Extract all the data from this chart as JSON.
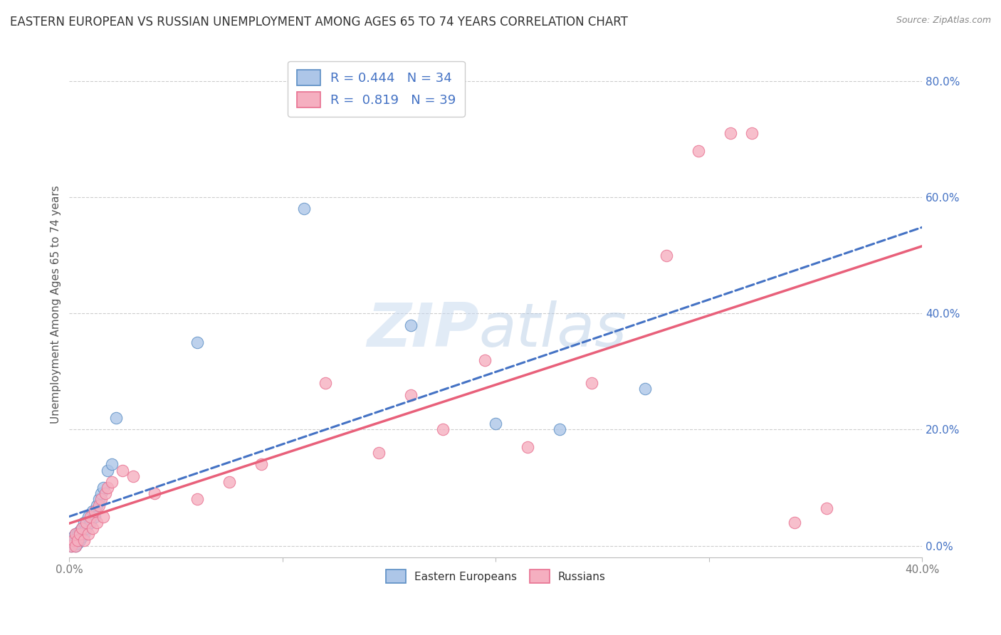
{
  "title": "EASTERN EUROPEAN VS RUSSIAN UNEMPLOYMENT AMONG AGES 65 TO 74 YEARS CORRELATION CHART",
  "source": "Source: ZipAtlas.com",
  "ylabel": "Unemployment Among Ages 65 to 74 years",
  "xlim": [
    0.0,
    0.4
  ],
  "ylim": [
    -0.02,
    0.85
  ],
  "ytick_vals": [
    0.0,
    0.2,
    0.4,
    0.6,
    0.8
  ],
  "xtick_vals": [
    0.0,
    0.1,
    0.2,
    0.3,
    0.4
  ],
  "ee_R": 0.444,
  "ee_N": 34,
  "ru_R": 0.819,
  "ru_N": 39,
  "ee_fill_color": "#adc6e8",
  "ru_fill_color": "#f5afc0",
  "ee_edge_color": "#5b8ec4",
  "ru_edge_color": "#e87090",
  "ee_line_color": "#4472c4",
  "ru_line_color": "#e8607a",
  "watermark_color": "#cde0f0",
  "background_color": "#ffffff",
  "grid_color": "#c8c8c8",
  "title_color": "#333333",
  "tick_label_color_y": "#4472c4",
  "tick_label_color_x": "#777777",
  "ee_scatter_x": [
    0.001,
    0.001,
    0.002,
    0.002,
    0.003,
    0.003,
    0.003,
    0.004,
    0.004,
    0.004,
    0.005,
    0.005,
    0.006,
    0.006,
    0.007,
    0.007,
    0.008,
    0.009,
    0.01,
    0.011,
    0.012,
    0.013,
    0.014,
    0.015,
    0.016,
    0.018,
    0.02,
    0.022,
    0.06,
    0.11,
    0.16,
    0.2,
    0.23,
    0.27
  ],
  "ee_scatter_y": [
    0.0,
    0.01,
    0.005,
    0.015,
    0.0,
    0.01,
    0.02,
    0.005,
    0.01,
    0.02,
    0.01,
    0.025,
    0.015,
    0.03,
    0.02,
    0.04,
    0.03,
    0.05,
    0.04,
    0.06,
    0.05,
    0.07,
    0.08,
    0.09,
    0.1,
    0.13,
    0.14,
    0.22,
    0.35,
    0.58,
    0.38,
    0.21,
    0.2,
    0.27
  ],
  "ru_scatter_x": [
    0.001,
    0.002,
    0.003,
    0.003,
    0.004,
    0.005,
    0.006,
    0.007,
    0.008,
    0.009,
    0.01,
    0.011,
    0.012,
    0.013,
    0.014,
    0.015,
    0.016,
    0.017,
    0.018,
    0.02,
    0.025,
    0.03,
    0.04,
    0.06,
    0.075,
    0.09,
    0.12,
    0.145,
    0.16,
    0.175,
    0.195,
    0.215,
    0.245,
    0.28,
    0.295,
    0.31,
    0.32,
    0.34,
    0.355
  ],
  "ru_scatter_y": [
    0.0,
    0.01,
    0.0,
    0.02,
    0.01,
    0.02,
    0.03,
    0.01,
    0.04,
    0.02,
    0.05,
    0.03,
    0.06,
    0.04,
    0.07,
    0.08,
    0.05,
    0.09,
    0.1,
    0.11,
    0.13,
    0.12,
    0.09,
    0.08,
    0.11,
    0.14,
    0.28,
    0.16,
    0.26,
    0.2,
    0.32,
    0.17,
    0.28,
    0.5,
    0.68,
    0.71,
    0.71,
    0.04,
    0.065
  ],
  "title_fontsize": 12,
  "axis_label_fontsize": 11,
  "tick_fontsize": 11,
  "legend_fontsize": 13
}
